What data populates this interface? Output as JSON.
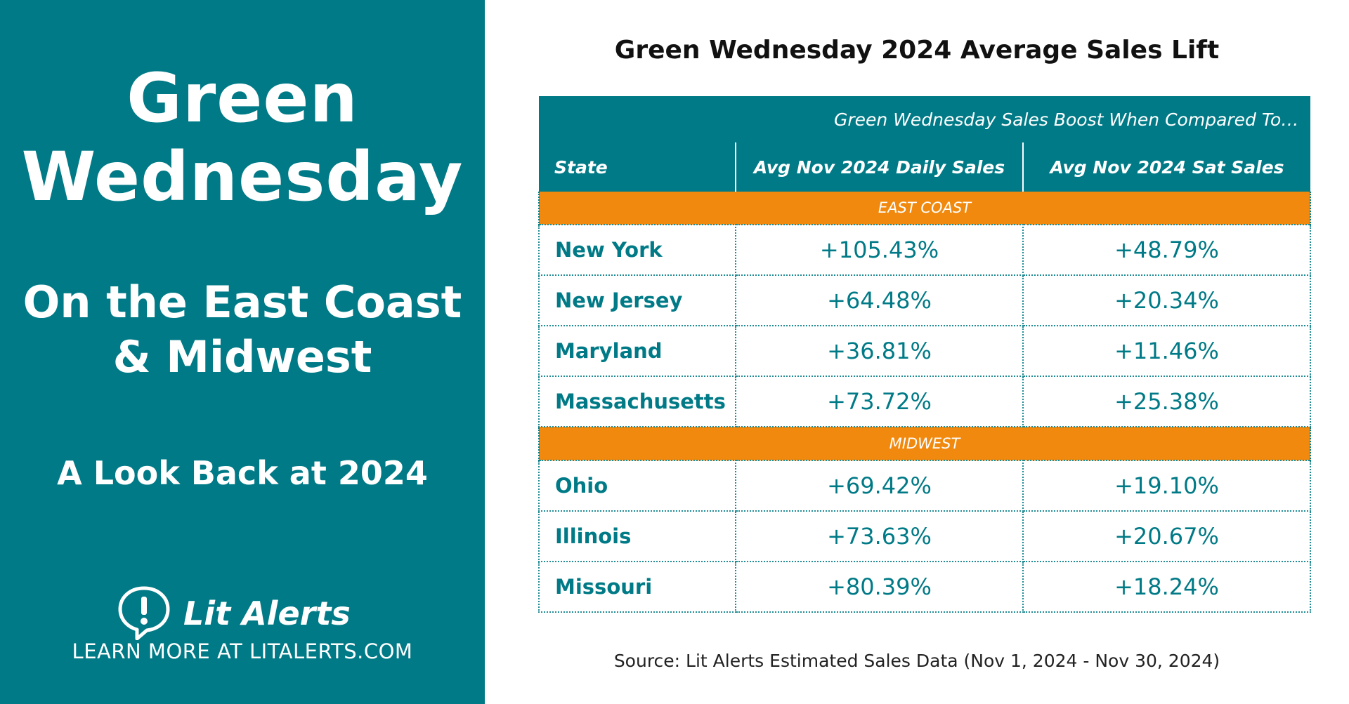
{
  "left_panel": {
    "title_line1": "Green",
    "title_line2": "Wednesday",
    "subtitle_line1": "On the East Coast",
    "subtitle_line2": "& Midwest",
    "tagline": "A Look Back at 2024",
    "brand_name": "Lit Alerts",
    "learn_more": "LEARN MORE AT LITALERTS.COM"
  },
  "chart_title": "Green Wednesday 2024 Average Sales Lift",
  "table": {
    "boost_caption": "Green Wednesday Sales Boost When Compared To…",
    "headers": {
      "state": "State",
      "daily": "Avg Nov 2024 Daily Sales",
      "sat": "Avg Nov 2024 Sat Sales"
    },
    "groups": [
      {
        "label": "EAST COAST",
        "rows": [
          {
            "state": "New York",
            "daily": "+105.43%",
            "sat": "+48.79%"
          },
          {
            "state": "New Jersey",
            "daily": "+64.48%",
            "sat": "+20.34%"
          },
          {
            "state": "Maryland",
            "daily": "+36.81%",
            "sat": "+11.46%"
          },
          {
            "state": "Massachusetts",
            "daily": "+73.72%",
            "sat": "+25.38%"
          }
        ]
      },
      {
        "label": "MIDWEST",
        "rows": [
          {
            "state": "Ohio",
            "daily": "+69.42%",
            "sat": "+19.10%"
          },
          {
            "state": "Illinois",
            "daily": "+73.63%",
            "sat": "+20.67%"
          },
          {
            "state": "Missouri",
            "daily": "+80.39%",
            "sat": "+18.24%"
          }
        ]
      }
    ]
  },
  "source_note": "Source: Lit Alerts Estimated Sales Data (Nov 1, 2024 - Nov 30, 2024)",
  "colors": {
    "teal": "#007a86",
    "orange": "#f0890e"
  }
}
